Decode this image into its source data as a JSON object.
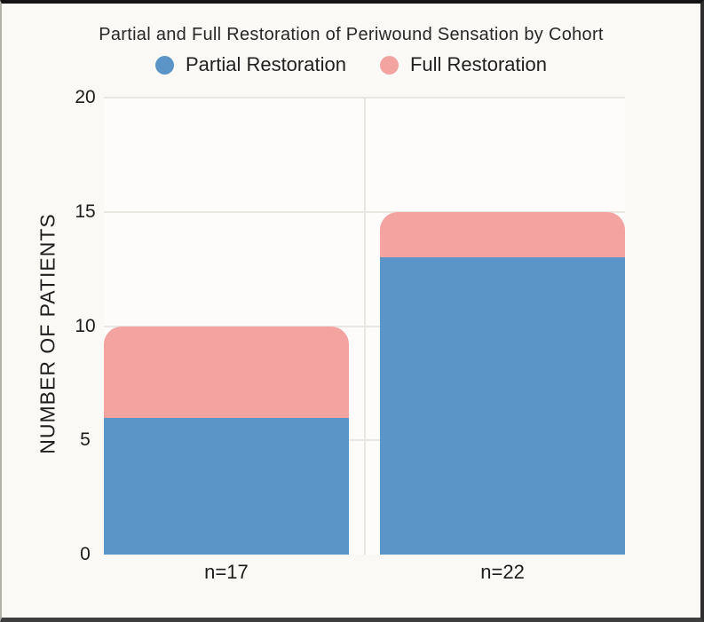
{
  "chart_data": {
    "type": "bar",
    "stacked": true,
    "title": "Partial and Full Restoration of Periwound Sensation by Cohort",
    "categories": [
      "n=17",
      "n=22"
    ],
    "series": [
      {
        "name": "Partial Restoration",
        "color": "#5b95c7",
        "values": [
          6,
          13
        ]
      },
      {
        "name": "Full Restoration",
        "color": "#f3a4a1",
        "values": [
          4,
          2
        ]
      }
    ],
    "xlabel": "",
    "ylabel": "NUMBER OF PATIENTS",
    "ylim": [
      0,
      20
    ],
    "yticks": [
      0,
      5,
      10,
      15,
      20
    ],
    "grid": true,
    "legend_position": "top",
    "colors": {
      "background": "#fbf9f6",
      "plot_background": "#fdfcfa",
      "gridline": "#eae7e2",
      "text": "#1f1f1f"
    }
  }
}
